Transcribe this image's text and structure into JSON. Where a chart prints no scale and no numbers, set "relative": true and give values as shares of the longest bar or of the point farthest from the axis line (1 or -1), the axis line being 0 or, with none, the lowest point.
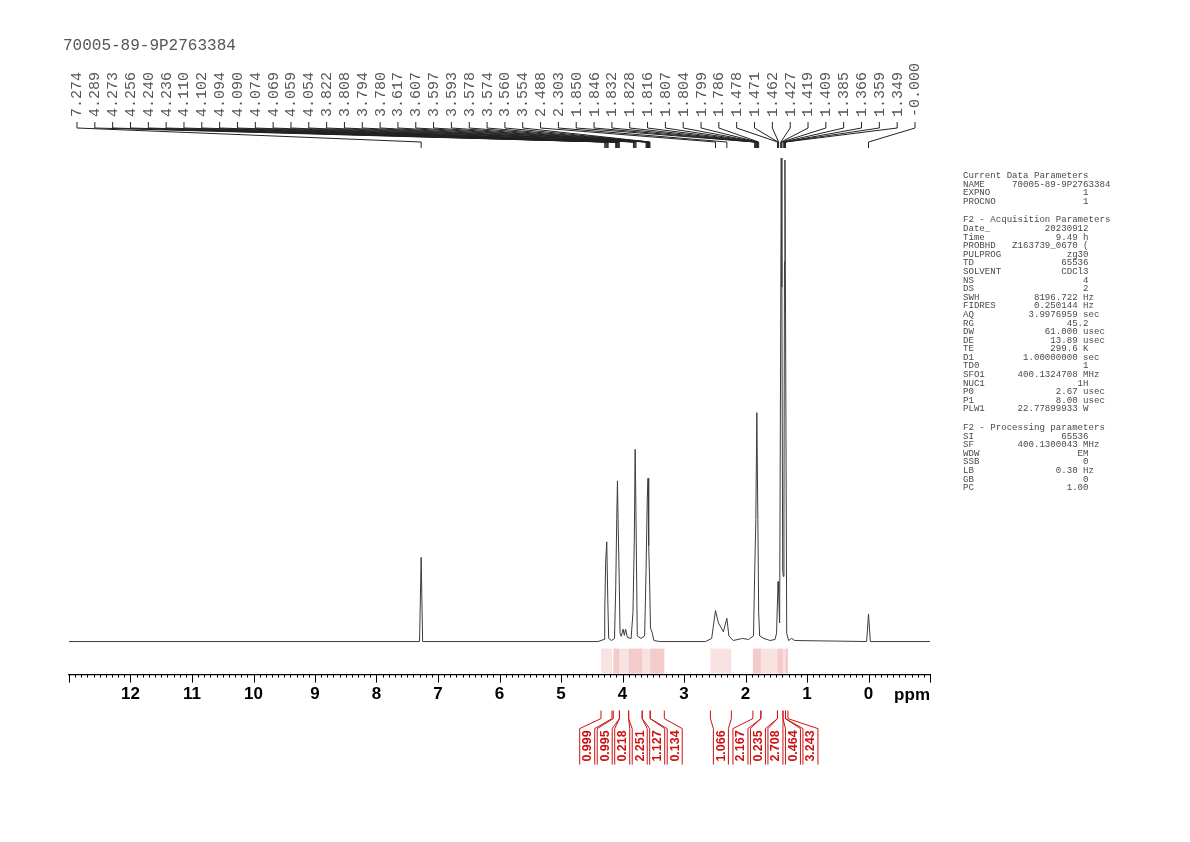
{
  "chart_data": {
    "type": "line",
    "relative": true,
    "title": "70005-89-9P2763384",
    "xlabel": "ppm",
    "color": "#3c3c3c",
    "xlim": [
      13,
      -1
    ],
    "xticks": [
      {
        "value": 13,
        "label": null
      },
      {
        "value": 12.9,
        "label": null
      },
      {
        "value": 12.8,
        "label": null
      },
      {
        "value": 12.7,
        "label": null
      },
      {
        "value": 12.6,
        "label": null
      },
      {
        "value": 12.5,
        "label": null
      },
      {
        "value": 12.4,
        "label": null
      },
      {
        "value": 12.3,
        "label": null
      },
      {
        "value": 12.2,
        "label": null
      },
      {
        "value": 12.1,
        "label": null
      },
      12,
      {
        "value": 11.9,
        "label": null
      },
      {
        "value": 11.8,
        "label": null
      },
      {
        "value": 11.7,
        "label": null
      },
      {
        "value": 11.6,
        "label": null
      },
      {
        "value": 11.5,
        "label": null
      },
      {
        "value": 11.4,
        "label": null
      },
      {
        "value": 11.3,
        "label": null
      },
      {
        "value": 11.2,
        "label": null
      },
      {
        "value": 11.1,
        "label": null
      },
      11,
      {
        "value": 10.9,
        "label": null
      },
      {
        "value": 10.8,
        "label": null
      },
      {
        "value": 10.7,
        "label": null
      },
      {
        "value": 10.6,
        "label": null
      },
      {
        "value": 10.5,
        "label": null
      },
      {
        "value": 10.4,
        "label": null
      },
      {
        "value": 10.3,
        "label": null
      },
      {
        "value": 10.2,
        "label": null
      },
      {
        "value": 10.1,
        "label": null
      },
      10,
      {
        "value": 9.9,
        "label": null
      },
      {
        "value": 9.8,
        "label": null
      },
      {
        "value": 9.7,
        "label": null
      },
      {
        "value": 9.6,
        "label": null
      },
      {
        "value": 9.5,
        "label": null
      },
      {
        "value": 9.4,
        "label": null
      },
      {
        "value": 9.3,
        "label": null
      },
      {
        "value": 9.2,
        "label": null
      },
      {
        "value": 9.1,
        "label": null
      },
      9,
      {
        "value": 8.9,
        "label": null
      },
      {
        "value": 8.8,
        "label": null
      },
      {
        "value": 8.7,
        "label": null
      },
      {
        "value": 8.6,
        "label": null
      },
      {
        "value": 8.5,
        "label": null
      },
      {
        "value": 8.4,
        "label": null
      },
      {
        "value": 8.3,
        "label": null
      },
      {
        "value": 8.2,
        "label": null
      },
      {
        "value": 8.1,
        "label": null
      },
      8,
      {
        "value": 7.9,
        "label": null
      },
      {
        "value": 7.8,
        "label": null
      },
      {
        "value": 7.7,
        "label": null
      },
      {
        "value": 7.6,
        "label": null
      },
      {
        "value": 7.5,
        "label": null
      },
      {
        "value": 7.4,
        "label": null
      },
      {
        "value": 7.3,
        "label": null
      },
      {
        "value": 7.2,
        "label": null
      },
      {
        "value": 7.1,
        "label": null
      },
      7,
      {
        "value": 6.9,
        "label": null
      },
      {
        "value": 6.8,
        "label": null
      },
      {
        "value": 6.7,
        "label": null
      },
      {
        "value": 6.6,
        "label": null
      },
      {
        "value": 6.5,
        "label": null
      },
      {
        "value": 6.4,
        "label": null
      },
      {
        "value": 6.3,
        "label": null
      },
      {
        "value": 6.2,
        "label": null
      },
      {
        "value": 6.1,
        "label": null
      },
      6,
      {
        "value": 5.9,
        "label": null
      },
      {
        "value": 5.8,
        "label": null
      },
      {
        "value": 5.7,
        "label": null
      },
      {
        "value": 5.6,
        "label": null
      },
      {
        "value": 5.5,
        "label": null
      },
      {
        "value": 5.4,
        "label": null
      },
      {
        "value": 5.3,
        "label": null
      },
      {
        "value": 5.2,
        "label": null
      },
      {
        "value": 5.1,
        "label": null
      },
      5,
      {
        "value": 4.9,
        "label": null
      },
      {
        "value": 4.8,
        "label": null
      },
      {
        "value": 4.7,
        "label": null
      },
      {
        "value": 4.6,
        "label": null
      },
      {
        "value": 4.5,
        "label": null
      },
      {
        "value": 4.4,
        "label": null
      },
      {
        "value": 4.3,
        "label": null
      },
      {
        "value": 4.2,
        "label": null
      },
      {
        "value": 4.1,
        "label": null
      },
      4,
      {
        "value": 3.9,
        "label": null
      },
      {
        "value": 3.8,
        "label": null
      },
      {
        "value": 3.7,
        "label": null
      },
      {
        "value": 3.6,
        "label": null
      },
      {
        "value": 3.5,
        "label": null
      },
      {
        "value": 3.4,
        "label": null
      },
      {
        "value": 3.3,
        "label": null
      },
      {
        "value": 3.2,
        "label": null
      },
      {
        "value": 3.1,
        "label": null
      },
      3,
      {
        "value": 2.9,
        "label": null
      },
      {
        "value": 2.8,
        "label": null
      },
      {
        "value": 2.7,
        "label": null
      },
      {
        "value": 2.6,
        "label": null
      },
      {
        "value": 2.5,
        "label": null
      },
      {
        "value": 2.4,
        "label": null
      },
      {
        "value": 2.3,
        "label": null
      },
      {
        "value": 2.2,
        "label": null
      },
      {
        "value": 2.1,
        "label": null
      },
      2,
      {
        "value": 1.9,
        "label": null
      },
      {
        "value": 1.8,
        "label": null
      },
      {
        "value": 1.7,
        "label": null
      },
      {
        "value": 1.6,
        "label": null
      },
      {
        "value": 1.5,
        "label": null
      },
      {
        "value": 1.4,
        "label": null
      },
      {
        "value": 1.3,
        "label": null
      },
      {
        "value": 1.2,
        "label": null
      },
      {
        "value": 1.1,
        "label": null
      },
      1,
      {
        "value": 0.9,
        "label": null
      },
      {
        "value": 0.8,
        "label": null
      },
      {
        "value": 0.7,
        "label": null
      },
      {
        "value": 0.6,
        "label": null
      },
      {
        "value": 0.5,
        "label": null
      },
      {
        "value": 0.4,
        "label": null
      },
      {
        "value": 0.3,
        "label": null
      },
      {
        "value": 0.2,
        "label": null
      },
      {
        "value": 0.1,
        "label": null
      },
      0,
      {
        "value": -0.1,
        "label": null
      },
      {
        "value": -0.2,
        "label": null
      },
      {
        "value": -0.3,
        "label": null
      },
      {
        "value": -0.4,
        "label": null
      },
      {
        "value": -0.5,
        "label": null
      },
      {
        "value": -0.6,
        "label": null
      },
      {
        "value": -0.7,
        "label": null
      },
      {
        "value": -0.8,
        "label": null
      },
      {
        "value": -0.9,
        "label": null
      },
      {
        "value": -1,
        "label": null
      }
    ],
    "x": [
      13,
      7.3,
      7.274,
      7.25,
      4.4,
      4.3,
      4.289,
      4.273,
      4.256,
      4.24,
      4.225,
      4.18,
      4.13,
      4.11,
      4.094,
      4.082,
      4.069,
      4.054,
      4.04,
      4.02,
      3.99,
      3.97,
      3.95,
      3.92,
      3.86,
      3.83,
      3.808,
      3.794,
      3.78,
      3.76,
      3.7,
      3.64,
      3.617,
      3.597,
      3.585,
      3.574,
      3.56,
      3.545,
      3.52,
      3.49,
      3.4,
      2.65,
      2.55,
      2.488,
      2.44,
      2.36,
      2.303,
      2.27,
      2.2,
      2.05,
      1.95,
      1.87,
      1.85,
      1.832,
      1.816,
      1.799,
      1.786,
      1.77,
      1.7,
      1.6,
      1.52,
      1.495,
      1.478,
      1.471,
      1.462,
      1.445,
      1.427,
      1.419,
      1.409,
      1.395,
      1.385,
      1.375,
      1.366,
      1.359,
      1.349,
      1.33,
      1.3,
      1.25,
      1.2,
      0.03,
      0,
      -0.03,
      -1
    ],
    "values": [
      0.064,
      0.064,
      0.227,
      0.064,
      0.064,
      0.068,
      0.12,
      0.22,
      0.257,
      0.15,
      0.07,
      0.066,
      0.07,
      0.17,
      0.3,
      0.375,
      0.28,
      0.19,
      0.08,
      0.074,
      0.088,
      0.076,
      0.088,
      0.072,
      0.07,
      0.12,
      0.26,
      0.436,
      0.3,
      0.075,
      0.07,
      0.075,
      0.2,
      0.342,
      0.38,
      0.25,
      0.187,
      0.09,
      0.082,
      0.066,
      0.064,
      0.064,
      0.07,
      0.124,
      0.1,
      0.083,
      0.109,
      0.075,
      0.066,
      0.07,
      0.068,
      0.075,
      0.2,
      0.3,
      0.507,
      0.3,
      0.12,
      0.075,
      0.07,
      0.066,
      0.068,
      0.08,
      0.15,
      0.18,
      0.16,
      0.1,
      0.7,
      1,
      0.75,
      0.2,
      0.19,
      0.3,
      0.8,
      0.996,
      0.7,
      0.08,
      0.066,
      0.07,
      0.066,
      0.064,
      0.117,
      0.064,
      0.064
    ],
    "bands": [
      {
        "axis": "x",
        "from": 4.35,
        "to": 4.17,
        "label": "0.999",
        "color": "#cc1111"
      },
      {
        "axis": "x",
        "from": 4.15,
        "to": 4.05,
        "label": "0.995",
        "color": "#cc1111"
      },
      {
        "axis": "x",
        "from": 4.05,
        "to": 3.9,
        "label": "0.218",
        "color": "#cc1111"
      },
      {
        "axis": "x",
        "from": 3.9,
        "to": 3.68,
        "label": "2.251",
        "color": "#cc1111"
      },
      {
        "axis": "x",
        "from": 3.68,
        "to": 3.55,
        "label": "1.127",
        "color": "#cc1111"
      },
      {
        "axis": "x",
        "from": 3.55,
        "to": 3.32,
        "label": "0.134",
        "color": "#cc1111"
      },
      {
        "axis": "x",
        "from": 2.57,
        "to": 2.23,
        "label": "1.066",
        "color": "#cc1111"
      },
      {
        "axis": "x",
        "from": 1.88,
        "to": 1.75,
        "label": "2.167",
        "color": "#cc1111"
      },
      {
        "axis": "x",
        "from": 1.75,
        "to": 1.48,
        "label": "0.235",
        "color": "#cc1111"
      },
      {
        "axis": "x",
        "from": 1.48,
        "to": 1.39,
        "label": "2.708",
        "color": "#cc1111"
      },
      {
        "axis": "x",
        "from": 1.39,
        "to": 1.35,
        "label": "0.464",
        "color": "#cc1111"
      },
      {
        "axis": "x",
        "from": 1.35,
        "to": 1.31,
        "label": "3.243",
        "color": "#cc1111"
      }
    ],
    "annotations": [
      {
        "text": "7.274",
        "x": 7.274
      },
      {
        "text": "4.289",
        "x": 4.289
      },
      {
        "text": "4.273",
        "x": 4.273
      },
      {
        "text": "4.256",
        "x": 4.256
      },
      {
        "text": "4.240",
        "x": 4.24
      },
      {
        "text": "4.236",
        "x": 4.236
      },
      {
        "text": "4.110",
        "x": 4.11
      },
      {
        "text": "4.102",
        "x": 4.102
      },
      {
        "text": "4.094",
        "x": 4.094
      },
      {
        "text": "4.090",
        "x": 4.09
      },
      {
        "text": "4.074",
        "x": 4.074
      },
      {
        "text": "4.069",
        "x": 4.069
      },
      {
        "text": "4.059",
        "x": 4.059
      },
      {
        "text": "4.054",
        "x": 4.054
      },
      {
        "text": "3.822",
        "x": 3.822
      },
      {
        "text": "3.808",
        "x": 3.808
      },
      {
        "text": "3.794",
        "x": 3.794
      },
      {
        "text": "3.780",
        "x": 3.78
      },
      {
        "text": "3.617",
        "x": 3.617
      },
      {
        "text": "3.607",
        "x": 3.607
      },
      {
        "text": "3.597",
        "x": 3.597
      },
      {
        "text": "3.593",
        "x": 3.593
      },
      {
        "text": "3.578",
        "x": 3.578
      },
      {
        "text": "3.574",
        "x": 3.574
      },
      {
        "text": "3.560",
        "x": 3.56
      },
      {
        "text": "3.554",
        "x": 3.554
      },
      {
        "text": "2.488",
        "x": 2.488
      },
      {
        "text": "2.303",
        "x": 2.303
      },
      {
        "text": "1.850",
        "x": 1.85
      },
      {
        "text": "1.846",
        "x": 1.846
      },
      {
        "text": "1.832",
        "x": 1.832
      },
      {
        "text": "1.828",
        "x": 1.828
      },
      {
        "text": "1.816",
        "x": 1.816
      },
      {
        "text": "1.807",
        "x": 1.807
      },
      {
        "text": "1.804",
        "x": 1.804
      },
      {
        "text": "1.799",
        "x": 1.799
      },
      {
        "text": "1.786",
        "x": 1.786
      },
      {
        "text": "1.478",
        "x": 1.478
      },
      {
        "text": "1.471",
        "x": 1.471
      },
      {
        "text": "1.462",
        "x": 1.462
      },
      {
        "text": "1.427",
        "x": 1.427
      },
      {
        "text": "1.419",
        "x": 1.419
      },
      {
        "text": "1.409",
        "x": 1.409
      },
      {
        "text": "1.385",
        "x": 1.385
      },
      {
        "text": "1.366",
        "x": 1.366
      },
      {
        "text": "1.359",
        "x": 1.359
      },
      {
        "text": "1.349",
        "x": 1.349
      },
      {
        "text": "-0.000",
        "x": 0
      },
      "Current Data Parameters\nNAME     70005-89-9P2763384\nEXPNO                 1\nPROCNO                1",
      "F2 - Acquisition Parameters\nDate_          20230912\nTime             9.49 h\nPROBHD   Z163739_0670 (\nPULPROG            zg30\nTD                65536\nSOLVENT           CDCl3\nNS                    4\nDS                    2\nSWH          8196.722 Hz\nFIDRES       0.250144 Hz\nAQ          3.9976959 sec\nRG                 45.2\nDW             61.000 usec\nDE              13.89 usec\nTE              299.6 K\nD1         1.00000000 sec\nTD0                   1\nSFO1      400.1324708 MHz\nNUC1                 1H\nP0               2.67 usec\nP1               8.00 usec\nPLW1      22.77899933 W",
      "F2 - Processing parameters\nSI                65536\nSF        400.1300043 MHz\nWDW                  EM\nSSB                   0\nLB               0.30 Hz\nGB                    0\nPC                 1.00"
    ]
  }
}
